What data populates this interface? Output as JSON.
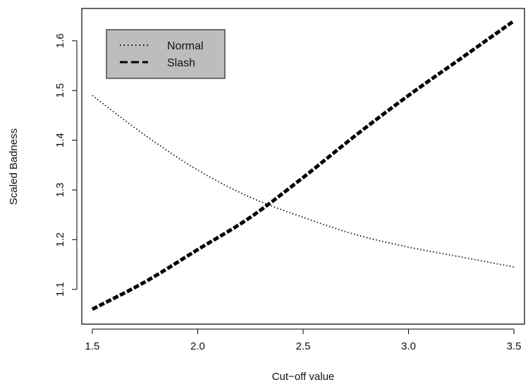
{
  "chart_data": {
    "type": "line",
    "title": "",
    "xlabel": "Cut−off value",
    "ylabel": "Scaled Badness",
    "xlim": [
      1.45,
      3.55
    ],
    "ylim": [
      1.03,
      1.665
    ],
    "x_ticks": [
      1.5,
      2.0,
      2.5,
      3.0,
      3.5
    ],
    "x_tick_labels": [
      "1.5",
      "2.0",
      "2.5",
      "3.0",
      "3.5"
    ],
    "y_ticks": [
      1.1,
      1.2,
      1.3,
      1.4,
      1.5,
      1.6
    ],
    "y_tick_labels": [
      "1.1",
      "1.2",
      "1.3",
      "1.4",
      "1.5",
      "1.6"
    ],
    "grid": false,
    "legend": {
      "position": "top-left",
      "background": "#bdbdbd"
    },
    "series": [
      {
        "name": "Normal",
        "style": "dotted",
        "color": "#000000",
        "x": [
          1.5,
          1.75,
          2.0,
          2.25,
          2.5,
          2.75,
          3.0,
          3.25,
          3.5
        ],
        "y": [
          1.49,
          1.41,
          1.34,
          1.285,
          1.245,
          1.21,
          1.185,
          1.165,
          1.145
        ]
      },
      {
        "name": "Slash",
        "style": "dashed",
        "color": "#000000",
        "x": [
          1.5,
          1.75,
          2.0,
          2.25,
          2.5,
          2.75,
          3.0,
          3.25,
          3.5
        ],
        "y": [
          1.06,
          1.115,
          1.18,
          1.245,
          1.325,
          1.41,
          1.49,
          1.565,
          1.64
        ]
      }
    ]
  }
}
